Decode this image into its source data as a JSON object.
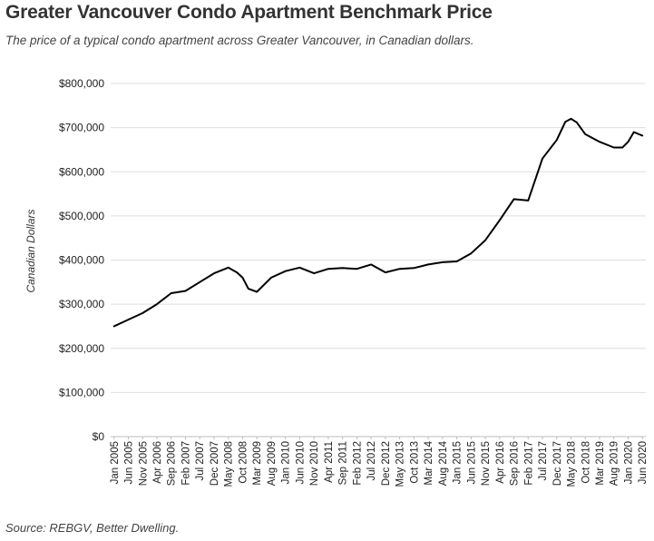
{
  "header": {
    "title": "Greater Vancouver Condo Apartment Benchmark Price",
    "subtitle": "The price of a typical condo apartment across Greater Vancouver, in Canadian dollars."
  },
  "footer": {
    "source": "Source: REBGV, Better Dwelling."
  },
  "chart_data": {
    "type": "line",
    "ylabel": "Canadian Dollars",
    "xlabel": "",
    "ylim": [
      0,
      800000
    ],
    "y_ticks": [
      0,
      100000,
      200000,
      300000,
      400000,
      500000,
      600000,
      700000,
      800000
    ],
    "y_tick_labels": [
      "$0",
      "$100,000",
      "$200,000",
      "$300,000",
      "$400,000",
      "$500,000",
      "$600,000",
      "$700,000",
      "$800,000"
    ],
    "x_ticks": [
      "Jan 2005",
      "Jun 2005",
      "Nov 2005",
      "Apr 2006",
      "Sep 2006",
      "Feb 2007",
      "Jul 2007",
      "Dec 2007",
      "May 2008",
      "Oct 2008",
      "Mar 2009",
      "Aug 2009",
      "Jan 2010",
      "Jun 2010",
      "Nov 2010",
      "Apr 2011",
      "Sep 2011",
      "Feb 2012",
      "Jul 2012",
      "Dec 2012",
      "May 2013",
      "Oct 2013",
      "Mar 2014",
      "Aug 2014",
      "Jan 2015",
      "Jun 2015",
      "Nov 2015",
      "Apr 2016",
      "Sep 2016",
      "Feb 2017",
      "Jul 2017",
      "Dec 2017",
      "May 2018",
      "Oct 2018",
      "Mar 2019",
      "Aug 2019",
      "Jan 2020",
      "Jun 2020"
    ],
    "grid": true,
    "line_color": "#000000",
    "series": [
      {
        "points": [
          [
            "Jan 2005",
            250000
          ],
          [
            "Jun 2005",
            265000
          ],
          [
            "Nov 2005",
            280000
          ],
          [
            "Apr 2006",
            300000
          ],
          [
            "Sep 2006",
            325000
          ],
          [
            "Feb 2007",
            330000
          ],
          [
            "Jul 2007",
            350000
          ],
          [
            "Dec 2007",
            370000
          ],
          [
            "May 2008",
            383000
          ],
          [
            "Aug 2008",
            372000
          ],
          [
            "Oct 2008",
            360000
          ],
          [
            "Dec 2008",
            335000
          ],
          [
            "Mar 2009",
            328000
          ],
          [
            "Aug 2009",
            360000
          ],
          [
            "Jan 2010",
            375000
          ],
          [
            "Jun 2010",
            383000
          ],
          [
            "Nov 2010",
            370000
          ],
          [
            "Apr 2011",
            380000
          ],
          [
            "Sep 2011",
            382000
          ],
          [
            "Feb 2012",
            380000
          ],
          [
            "Jul 2012",
            390000
          ],
          [
            "Dec 2012",
            372000
          ],
          [
            "May 2013",
            380000
          ],
          [
            "Oct 2013",
            382000
          ],
          [
            "Mar 2014",
            390000
          ],
          [
            "Aug 2014",
            395000
          ],
          [
            "Jan 2015",
            397000
          ],
          [
            "Jun 2015",
            415000
          ],
          [
            "Nov 2015",
            445000
          ],
          [
            "Apr 2016",
            490000
          ],
          [
            "Sep 2016",
            538000
          ],
          [
            "Feb 2017",
            535000
          ],
          [
            "Jul 2017",
            630000
          ],
          [
            "Dec 2017",
            672000
          ],
          [
            "Mar 2018",
            713000
          ],
          [
            "May 2018",
            720000
          ],
          [
            "Jul 2018",
            712000
          ],
          [
            "Oct 2018",
            685000
          ],
          [
            "Mar 2019",
            668000
          ],
          [
            "Aug 2019",
            655000
          ],
          [
            "Nov 2019",
            655000
          ],
          [
            "Jan 2020",
            668000
          ],
          [
            "Mar 2020",
            690000
          ],
          [
            "Jun 2020",
            682000
          ]
        ]
      }
    ]
  }
}
